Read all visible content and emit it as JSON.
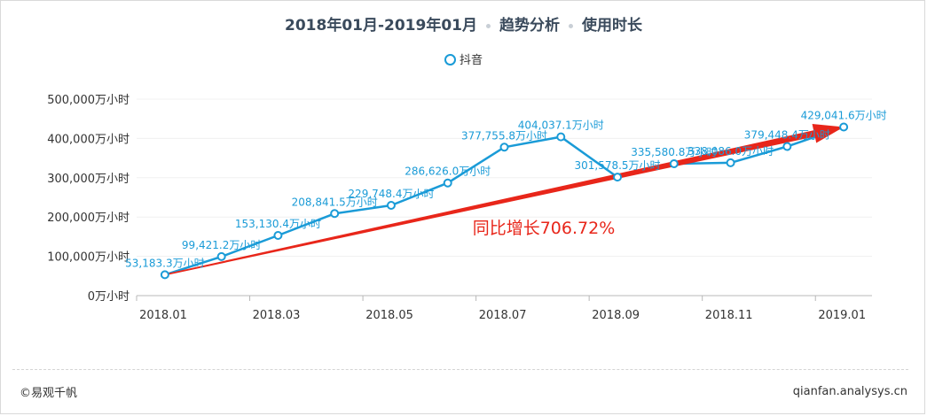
{
  "title": {
    "period": "2018年01月-2019年01月",
    "section": "趋势分析",
    "metric": "使用时长"
  },
  "legend": {
    "label": "抖音"
  },
  "annotation": {
    "text": "同比增长706.72%"
  },
  "footer": {
    "left": "©易观千帆",
    "right": "qianfan.analysys.cn"
  },
  "colors": {
    "series": "#1a9bd7",
    "arrow": "#e8261a",
    "axis_text": "#333333"
  },
  "chart_data": {
    "type": "line",
    "x": [
      "2018.01",
      "2018.02",
      "2018.03",
      "2018.04",
      "2018.05",
      "2018.06",
      "2018.07",
      "2018.08",
      "2018.09",
      "2018.10",
      "2018.11",
      "2018.12",
      "2019.01"
    ],
    "x_tick_labels": [
      "2018.01",
      "2018.03",
      "2018.05",
      "2018.07",
      "2018.09",
      "2018.11",
      "2019.01"
    ],
    "series": [
      {
        "name": "抖音",
        "values": [
          53183.3,
          99421.2,
          153130.4,
          208841.5,
          229748.4,
          286626.0,
          377755.8,
          404037.1,
          301578.5,
          335580.8,
          338086.0,
          379448.4,
          429041.6
        ],
        "labels": [
          "53,183.3万小时",
          "99,421.2万小时",
          "153,130.4万小时",
          "208,841.5万小时",
          "229,748.4万小时",
          "286,626.0万小时",
          "377,755.8万小时",
          "404,037.1万小时",
          "301,578.5万小时",
          "335,580.8万小时",
          "338,086.0万小时",
          "379,448.4万小时",
          "429,041.6万小时"
        ]
      }
    ],
    "y_ticks": [
      0,
      100000,
      200000,
      300000,
      400000,
      500000
    ],
    "y_tick_labels": [
      "0万小时",
      "100,000万小时",
      "200,000万小时",
      "300,000万小时",
      "400,000万小时",
      "500,000万小时"
    ],
    "ylim": [
      0,
      500000
    ],
    "grid": true,
    "legend_position": "top-center"
  }
}
